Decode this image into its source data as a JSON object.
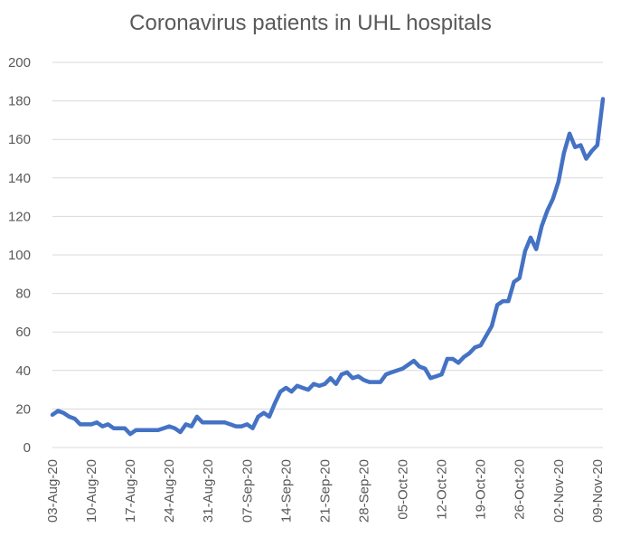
{
  "chart_data": {
    "type": "line",
    "title": "Coronavirus patients in UHL hospitals",
    "xlabel": "",
    "ylabel": "",
    "ylim": [
      0,
      200
    ],
    "y_ticks": [
      0,
      20,
      40,
      60,
      80,
      100,
      120,
      140,
      160,
      180,
      200
    ],
    "x_tick_labels": [
      "03-Aug-20",
      "10-Aug-20",
      "17-Aug-20",
      "24-Aug-20",
      "31-Aug-20",
      "07-Sep-20",
      "14-Sep-20",
      "21-Sep-20",
      "28-Sep-20",
      "05-Oct-20",
      "12-Oct-20",
      "19-Oct-20",
      "26-Oct-20",
      "02-Nov-20",
      "09-Nov-20"
    ],
    "x_start": "03-Aug-20",
    "x_end": "10-Nov-20",
    "grid": "horizontal",
    "line_color": "#4472C4",
    "grid_color": "#d9d9d9",
    "series": [
      {
        "values": [
          17,
          19,
          18,
          16,
          15,
          12,
          12,
          12,
          13,
          11,
          12,
          10,
          10,
          10,
          7,
          9,
          9,
          9,
          9,
          9,
          10,
          11,
          10,
          8,
          12,
          11,
          16,
          13,
          13,
          13,
          13,
          13,
          12,
          11,
          11,
          12,
          10,
          16,
          18,
          16,
          23,
          29,
          31,
          29,
          32,
          31,
          30,
          33,
          32,
          33,
          36,
          33,
          38,
          39,
          36,
          37,
          35,
          34,
          34,
          34,
          38,
          39,
          40,
          41,
          43,
          45,
          42,
          41,
          36,
          37,
          38,
          46,
          46,
          44,
          47,
          49,
          52,
          53,
          58,
          63,
          74,
          76,
          76,
          86,
          88,
          102,
          109,
          103,
          115,
          123,
          129,
          138,
          153,
          163,
          156,
          157,
          150,
          154,
          157,
          181
        ]
      }
    ]
  }
}
